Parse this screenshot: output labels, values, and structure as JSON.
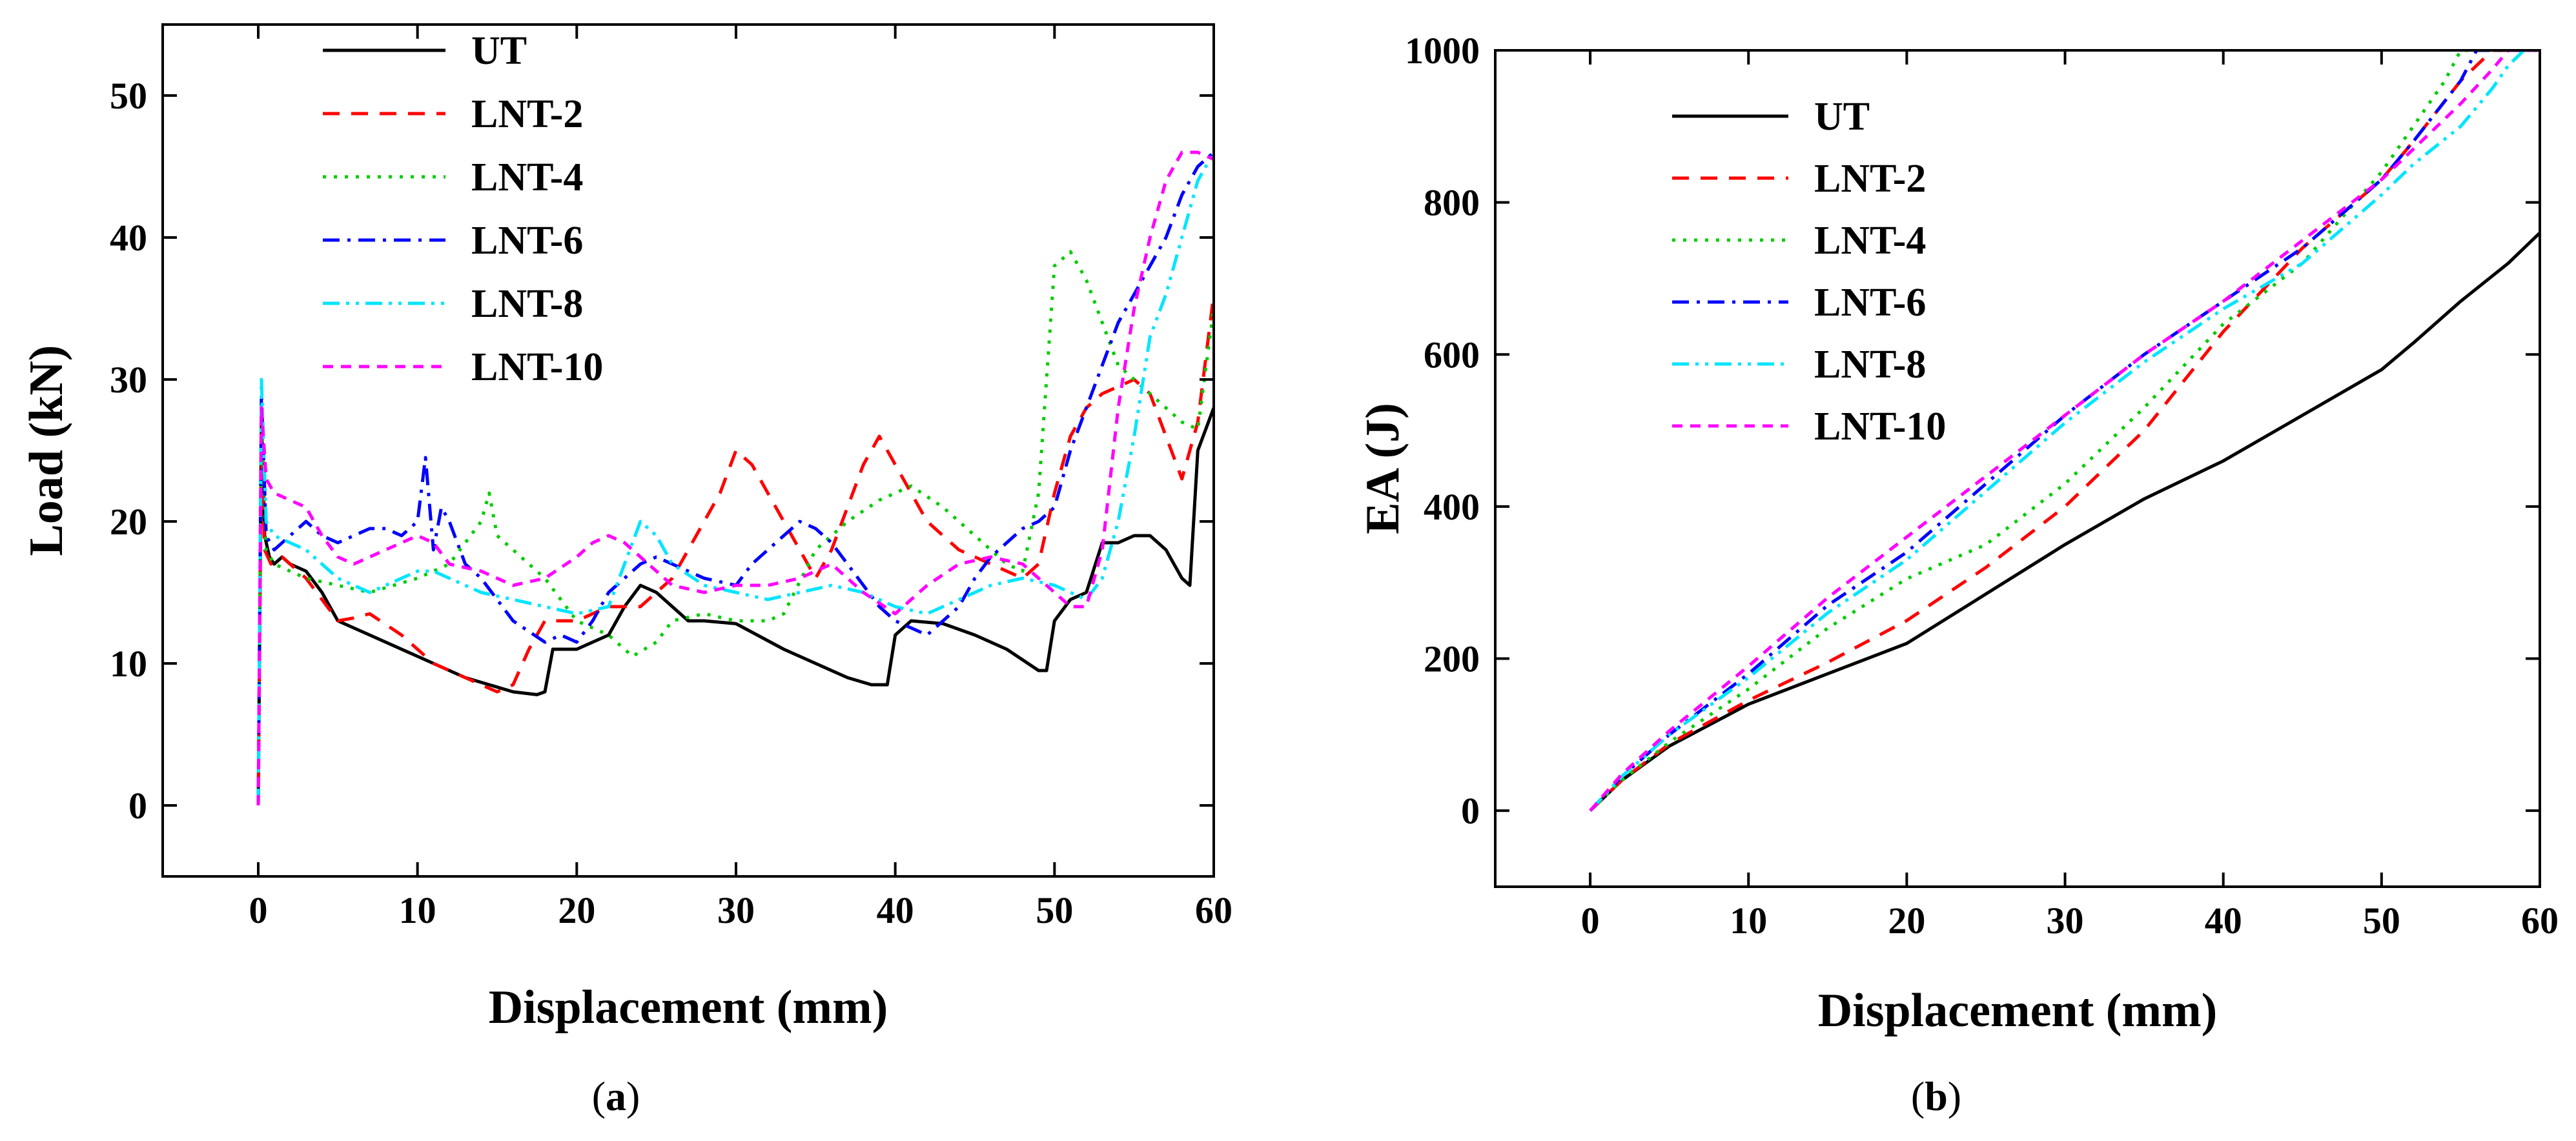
{
  "figure": {
    "panel_labels": [
      {
        "open": "(",
        "letter": "a",
        "close": ")"
      },
      {
        "open": "(",
        "letter": "b",
        "close": ")"
      }
    ]
  },
  "series_styles": [
    {
      "name": "UT",
      "color": "#000000",
      "dash": "solid"
    },
    {
      "name": "LNT-2",
      "color": "#ff0000",
      "dash": "dashed"
    },
    {
      "name": "LNT-4",
      "color": "#00cc00",
      "dash": "dotted"
    },
    {
      "name": "LNT-6",
      "color": "#0000ff",
      "dash": "dashdot"
    },
    {
      "name": "LNT-8",
      "color": "#00e5ff",
      "dash": "dashdotdot"
    },
    {
      "name": "LNT-10",
      "color": "#ff00ff",
      "dash": "shortdash"
    }
  ],
  "chart_data": [
    {
      "type": "line",
      "panel": "a",
      "xlabel": "Displacement (mm)",
      "ylabel": "Load (kN)",
      "xlim": [
        -6,
        60
      ],
      "ylim": [
        -5,
        55
      ],
      "xticks": [
        0,
        10,
        20,
        30,
        40,
        50,
        60
      ],
      "yticks": [
        0,
        10,
        20,
        30,
        40,
        50
      ],
      "grid": false,
      "legend_position": "top-left",
      "series": [
        {
          "name": "UT",
          "x": [
            0,
            0.2,
            0.4,
            0.7,
            1,
            1.5,
            2,
            3,
            4,
            5,
            7,
            10,
            13,
            16,
            17.5,
            18,
            18.5,
            20,
            22,
            23,
            24,
            25,
            27,
            28,
            30,
            33,
            35,
            37,
            38.5,
            39.5,
            40,
            41,
            43,
            45,
            47,
            49,
            49.5,
            50,
            51,
            52,
            53,
            54,
            55,
            56,
            57,
            58,
            58.5,
            59,
            60
          ],
          "y": [
            0,
            27,
            19,
            17.5,
            17,
            17.5,
            17,
            16.5,
            15,
            13,
            12,
            10.5,
            9,
            8,
            7.8,
            8,
            11,
            11,
            12,
            14,
            15.5,
            15,
            13,
            13,
            12.8,
            11,
            10,
            9,
            8.5,
            8.5,
            12,
            13,
            12.8,
            12,
            11,
            9.5,
            9.5,
            13,
            14.5,
            15,
            18.5,
            18.5,
            19,
            19,
            18,
            16,
            15.5,
            25,
            28
          ]
        },
        {
          "name": "LNT-2",
          "x": [
            0,
            0.2,
            0.4,
            0.8,
            1.5,
            2,
            3,
            4,
            5,
            6,
            7,
            9,
            11,
            13,
            15,
            16,
            17,
            18,
            20,
            22,
            24,
            26,
            28,
            29,
            30,
            31,
            32,
            33,
            34,
            35,
            36,
            37,
            38,
            39,
            40,
            41,
            42,
            43,
            44,
            45,
            46,
            47,
            48,
            49,
            50,
            51,
            52,
            53,
            54,
            55,
            56,
            57,
            58,
            59,
            60
          ],
          "y": [
            0,
            25,
            18,
            17,
            17.5,
            17,
            16,
            14.5,
            13,
            13.2,
            13.5,
            12,
            10,
            9,
            8,
            8.5,
            11,
            13,
            13,
            14,
            14,
            16,
            20,
            22,
            25,
            24,
            22,
            20,
            18,
            16,
            18,
            21,
            24,
            26,
            24,
            22,
            20,
            19,
            18,
            17.5,
            17,
            16.5,
            16,
            17,
            22,
            26,
            28,
            29,
            29.5,
            30,
            29,
            26,
            23,
            27,
            36
          ]
        },
        {
          "name": "LNT-4",
          "x": [
            0,
            0.2,
            0.5,
            1,
            2,
            3,
            5,
            7,
            10,
            12,
            14,
            14.5,
            15,
            16,
            17,
            18,
            20,
            22,
            23.5,
            25,
            26,
            28,
            30,
            32,
            33,
            35,
            37,
            39,
            41,
            43,
            45,
            47,
            48,
            49,
            50,
            51,
            52,
            53,
            54,
            55,
            56,
            57,
            58,
            59,
            60
          ],
          "y": [
            0,
            28,
            18,
            17,
            16.5,
            16,
            15.5,
            15,
            16,
            17,
            20,
            22,
            19,
            18,
            17,
            16,
            13,
            12,
            10.5,
            11.5,
            13,
            13.5,
            13,
            13,
            13.5,
            18,
            20,
            21.5,
            22.5,
            21,
            19,
            17,
            16.5,
            22,
            38,
            39,
            37,
            34,
            31,
            30,
            29,
            28,
            27,
            26.5,
            35
          ]
        },
        {
          "name": "LNT-6",
          "x": [
            0,
            0.2,
            0.5,
            1,
            2,
            3,
            4,
            5,
            6,
            7,
            8,
            9,
            10,
            10.5,
            11,
            11.5,
            12,
            13,
            14,
            16,
            18,
            19,
            20,
            21,
            22,
            23,
            24,
            25,
            26,
            28,
            30,
            31,
            32,
            33,
            34,
            35,
            36,
            37,
            38,
            39,
            40,
            41,
            42,
            43,
            44,
            45,
            46,
            47,
            48,
            49,
            50,
            51,
            52,
            53,
            54,
            55,
            56,
            57,
            58,
            59,
            60
          ],
          "y": [
            0,
            29,
            19,
            18,
            19,
            20,
            19,
            18.5,
            19,
            19.5,
            19.5,
            19,
            20,
            24.5,
            18,
            21,
            20,
            17,
            16,
            13,
            11.5,
            12,
            11.5,
            13,
            15,
            16,
            17,
            17.5,
            17,
            16,
            15.5,
            17,
            18,
            19,
            20,
            19.5,
            18.5,
            17,
            15.5,
            14,
            13,
            12.5,
            12,
            13,
            14,
            16,
            17.5,
            18.5,
            19.5,
            20,
            21,
            25,
            28,
            31,
            34,
            36,
            38,
            40,
            43,
            45,
            46
          ]
        },
        {
          "name": "LNT-8",
          "x": [
            0,
            0.2,
            0.5,
            1,
            2,
            3,
            4,
            5,
            6,
            7,
            8,
            9,
            10,
            11,
            12,
            13,
            14,
            16,
            18,
            20,
            22,
            23,
            24,
            25,
            26,
            28,
            30,
            32,
            34,
            36,
            38,
            40,
            42,
            44,
            46,
            48,
            50,
            52,
            53,
            54,
            55,
            56,
            57,
            58,
            59,
            60
          ],
          "y": [
            0,
            30,
            20,
            19,
            18.5,
            18,
            17,
            16,
            15.5,
            15,
            15.5,
            16,
            16.5,
            16.5,
            16,
            15.5,
            15,
            14.5,
            14,
            13.5,
            14,
            17,
            20,
            19,
            17,
            15.5,
            15,
            14.5,
            15,
            15.5,
            15,
            14,
            13.5,
            14.5,
            15.5,
            16,
            15.5,
            14.5,
            16,
            20,
            26,
            33,
            36,
            40,
            44,
            46
          ]
        },
        {
          "name": "LNT-10",
          "x": [
            0,
            0.2,
            0.5,
            1,
            2,
            3,
            4,
            5,
            6,
            7,
            8,
            9,
            10,
            11,
            12,
            14,
            16,
            18,
            20,
            21,
            22,
            23,
            24,
            25,
            26,
            28,
            30,
            32,
            34,
            36,
            38,
            40,
            42,
            44,
            46,
            48,
            50,
            51,
            52,
            53,
            54,
            55,
            56,
            57,
            58,
            59,
            60
          ],
          "y": [
            0,
            28,
            23,
            22,
            21.5,
            21,
            19,
            17.5,
            17,
            17.5,
            18,
            18.5,
            19,
            18.5,
            17,
            16.5,
            15.5,
            16,
            17.5,
            18.5,
            19,
            18.5,
            17.5,
            16.5,
            15.5,
            15,
            15.5,
            15.5,
            16,
            17,
            15,
            13.5,
            15.5,
            17,
            17.5,
            17,
            15,
            14,
            14,
            18,
            28,
            35,
            40,
            44,
            46,
            46,
            45.5
          ]
        }
      ]
    },
    {
      "type": "line",
      "panel": "b",
      "xlabel": "Displacement (mm)",
      "ylabel": "EA (J)",
      "xlim": [
        -6,
        60
      ],
      "ylim": [
        -100,
        1000
      ],
      "xticks": [
        0,
        10,
        20,
        30,
        40,
        50,
        60
      ],
      "yticks": [
        0,
        200,
        400,
        600,
        800,
        1000
      ],
      "grid": false,
      "legend_position": "top-left",
      "series": [
        {
          "name": "UT",
          "x": [
            0,
            2,
            5,
            10,
            15,
            20,
            25,
            30,
            35,
            40,
            45,
            50,
            52,
            55,
            58,
            60
          ],
          "y": [
            0,
            40,
            85,
            140,
            180,
            220,
            285,
            350,
            410,
            460,
            520,
            580,
            615,
            670,
            720,
            760
          ]
        },
        {
          "name": "LNT-2",
          "x": [
            0,
            2,
            5,
            10,
            15,
            20,
            25,
            30,
            35,
            40,
            45,
            50,
            52,
            55,
            56,
            57,
            58,
            59,
            60
          ],
          "y": [
            0,
            40,
            88,
            145,
            195,
            250,
            320,
            400,
            500,
            630,
            740,
            830,
            880,
            960,
            980,
            1000,
            1000,
            1000,
            1000
          ]
        },
        {
          "name": "LNT-4",
          "x": [
            0,
            2,
            5,
            10,
            15,
            20,
            25,
            30,
            35,
            40,
            45,
            50,
            52,
            54,
            55,
            56,
            57,
            58,
            59,
            60
          ],
          "y": [
            0,
            40,
            90,
            160,
            240,
            305,
            350,
            430,
            530,
            640,
            720,
            840,
            900,
            960,
            1000,
            1000,
            1000,
            1000,
            1000,
            1000
          ]
        },
        {
          "name": "LNT-6",
          "x": [
            0,
            2,
            5,
            10,
            15,
            20,
            25,
            30,
            35,
            40,
            45,
            50,
            52,
            55,
            56,
            57,
            58,
            59,
            60
          ],
          "y": [
            0,
            45,
            100,
            180,
            270,
            340,
            430,
            520,
            600,
            670,
            740,
            830,
            880,
            960,
            1000,
            1000,
            1000,
            1000,
            1000
          ]
        },
        {
          "name": "LNT-8",
          "x": [
            0,
            2,
            5,
            10,
            15,
            20,
            25,
            30,
            35,
            40,
            45,
            50,
            52,
            55,
            57,
            58,
            59,
            60
          ],
          "y": [
            0,
            45,
            100,
            175,
            260,
            330,
            420,
            510,
            590,
            660,
            720,
            810,
            850,
            900,
            950,
            980,
            1000,
            1000
          ]
        },
        {
          "name": "LNT-10",
          "x": [
            0,
            2,
            5,
            10,
            15,
            20,
            25,
            30,
            35,
            40,
            45,
            50,
            52,
            55,
            57,
            58,
            59,
            60
          ],
          "y": [
            0,
            48,
            105,
            190,
            280,
            360,
            440,
            520,
            600,
            670,
            750,
            830,
            870,
            930,
            975,
            1000,
            1000,
            1000
          ]
        }
      ]
    }
  ]
}
